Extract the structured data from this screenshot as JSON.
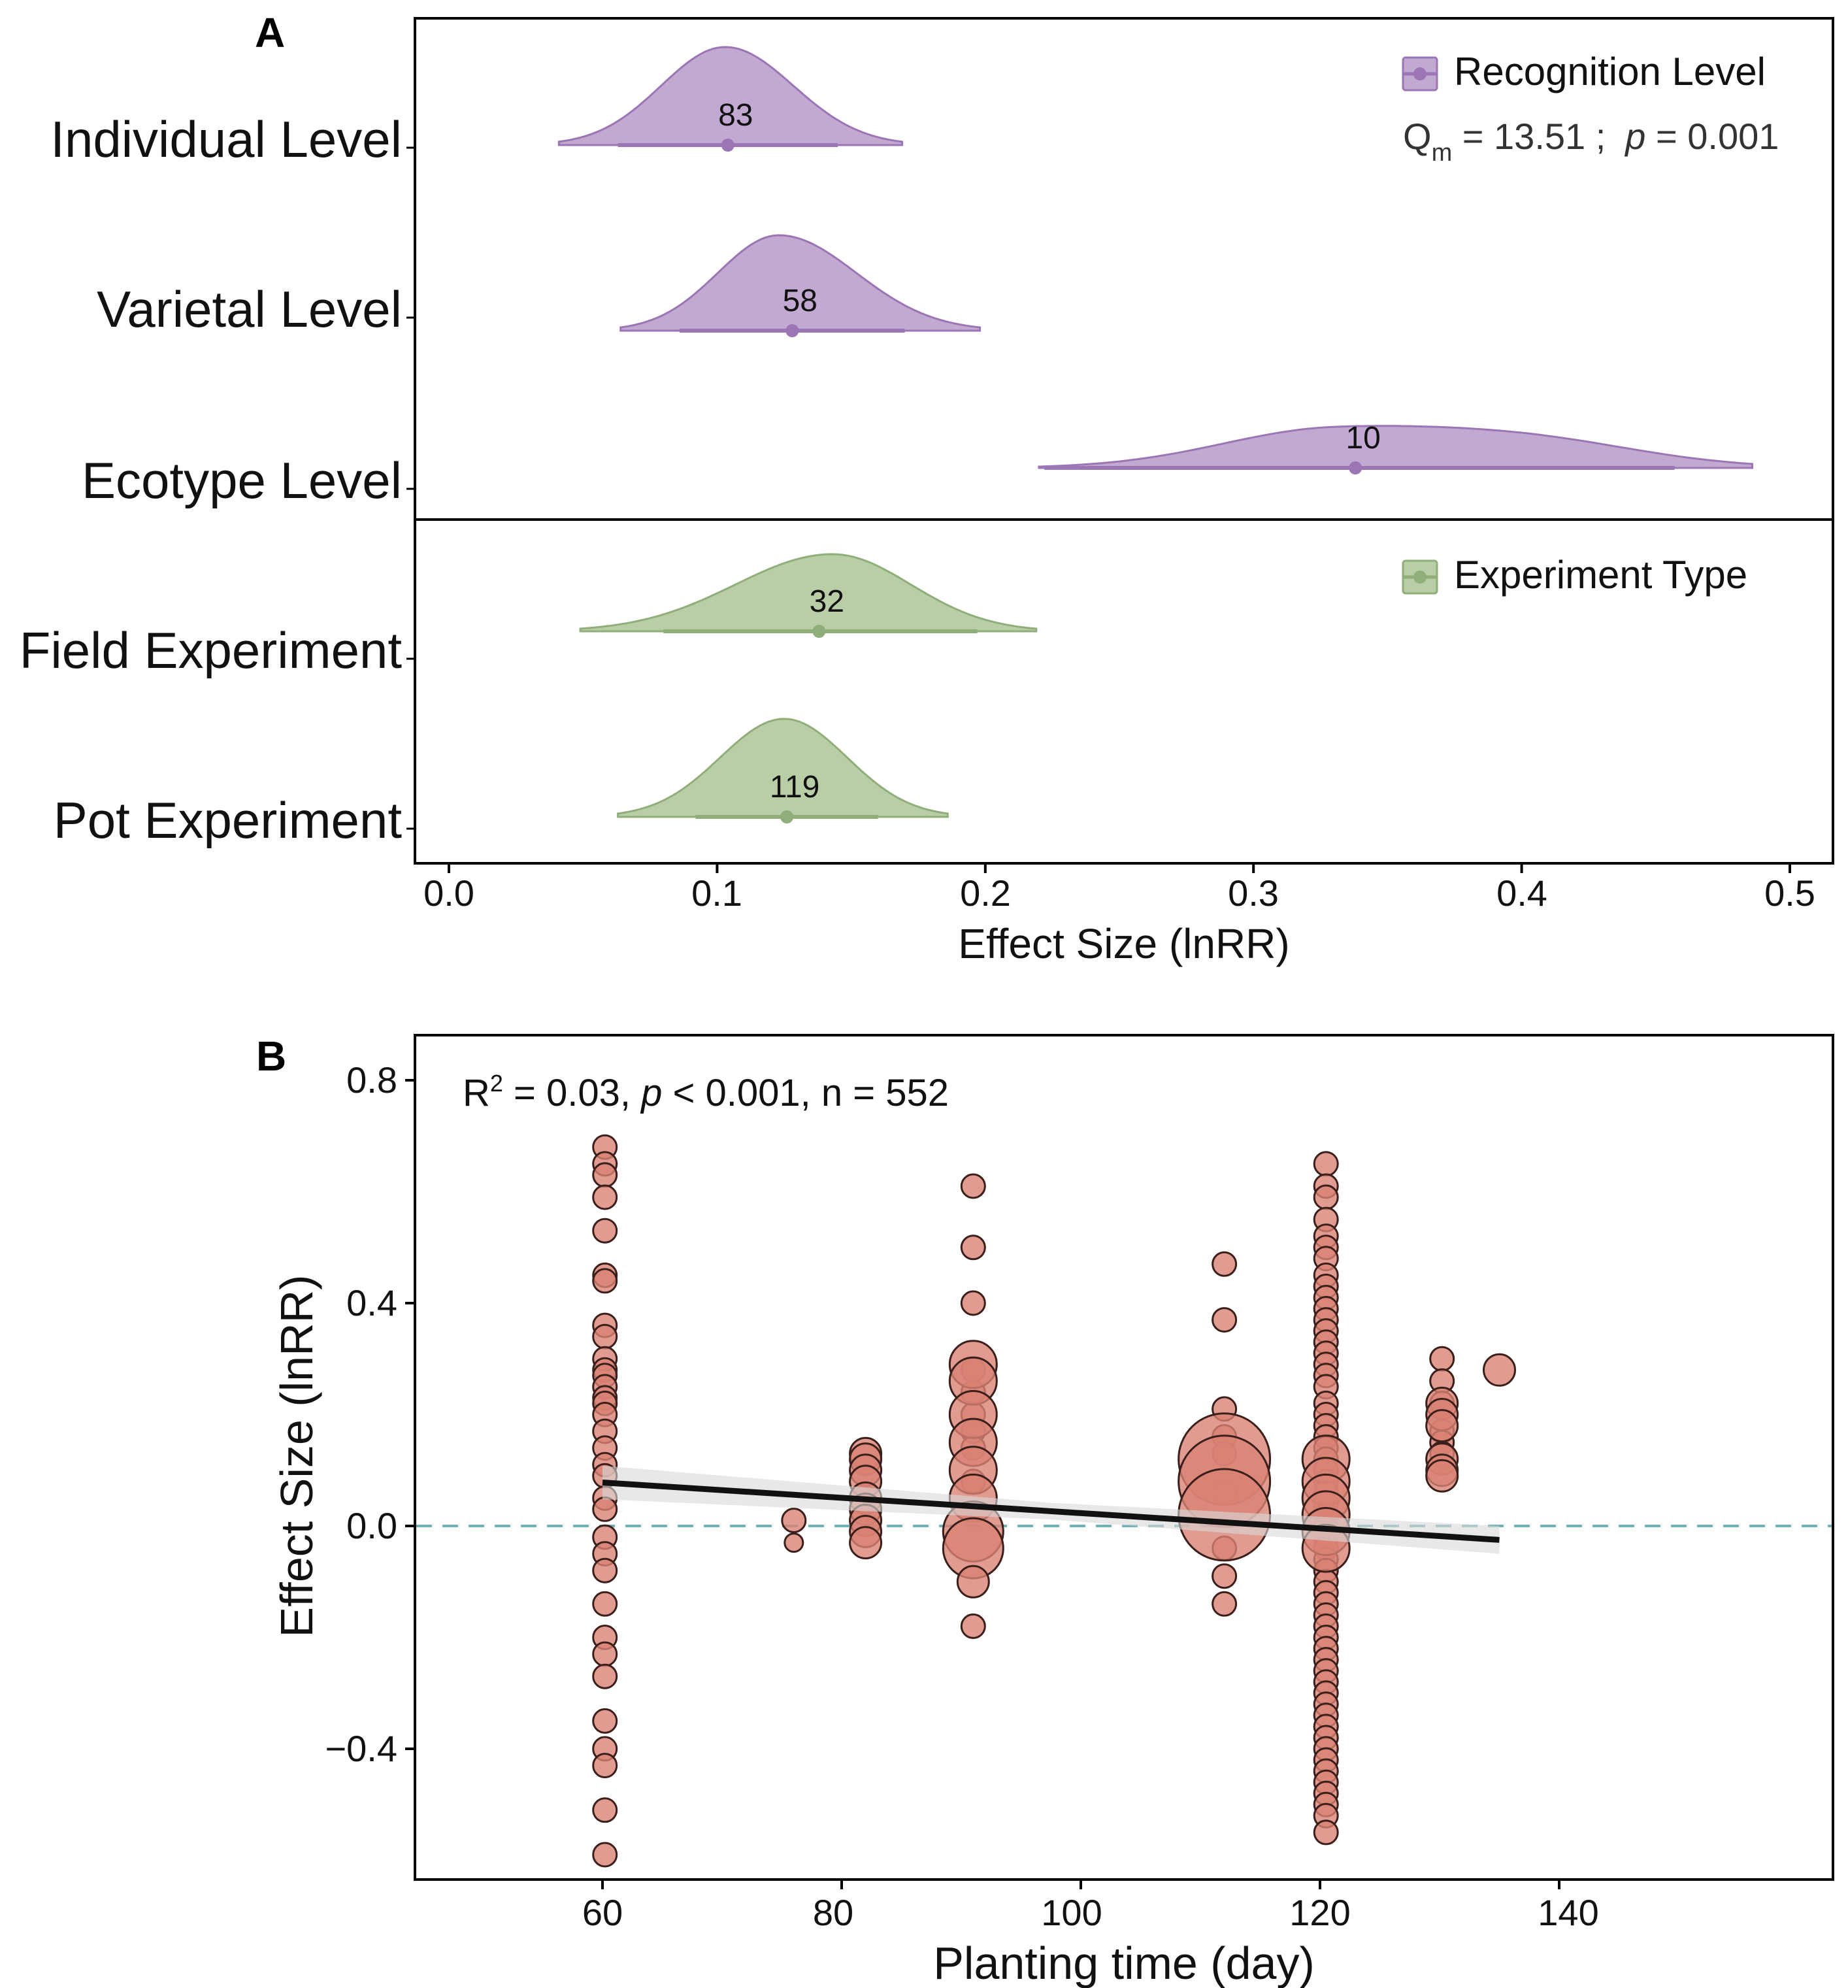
{
  "panels": {
    "a_letter": "A",
    "b_letter": "B"
  },
  "colors": {
    "purple_fill": "#c2a9d2",
    "purple_line": "#9b75b4",
    "green_fill": "#b9cda6",
    "green_line": "#8fae7a",
    "point_fill": "#d98274",
    "point_stroke": "#3a1f1a",
    "ref_line": "#6fb1b5",
    "fit_line": "#111111",
    "ci_band": "#d9d9d9"
  },
  "chart_data": [
    {
      "type": "ridgeline-forest",
      "title": "",
      "xlabel": "Effect Size (lnRR)",
      "xlim": [
        -0.01,
        0.52
      ],
      "xticks": [
        0.0,
        0.1,
        0.2,
        0.3,
        0.4,
        0.5
      ],
      "xtick_labels": [
        "0.0",
        "0.1",
        "0.2",
        "0.3",
        "0.4",
        "0.5"
      ],
      "groups": [
        {
          "legend": "Recognition Level",
          "color": "purple",
          "stat_q_prefix": "Q",
          "stat_q_sub": "m",
          "stat_q_value": " = 13.51 ;",
          "stat_p_label": "p",
          "stat_p_value": " = 0.001",
          "categories": [
            {
              "label": "Individual Level",
              "n": "83",
              "mean": 0.104,
              "ci_low": 0.063,
              "ci_high": 0.145,
              "range": [
                0.041,
                0.169
              ],
              "mode": 0.103
            },
            {
              "label": "Varietal Level",
              "n": "58",
              "mean": 0.128,
              "ci_low": 0.086,
              "ci_high": 0.17,
              "range": [
                0.064,
                0.198
              ],
              "mode": 0.123
            },
            {
              "label": "Ecotype Level",
              "n": "10",
              "mean": 0.338,
              "ci_low": 0.222,
              "ci_high": 0.457,
              "range": [
                0.22,
                0.486
              ],
              "mode": 0.33
            }
          ]
        },
        {
          "legend": "Experiment Type",
          "color": "green",
          "categories": [
            {
              "label": "Field Experiment",
              "n": "32",
              "mean": 0.138,
              "ci_low": 0.08,
              "ci_high": 0.197,
              "range": [
                0.049,
                0.219
              ],
              "mode": 0.143
            },
            {
              "label": "Pot Experiment",
              "n": "119",
              "mean": 0.126,
              "ci_low": 0.092,
              "ci_high": 0.16,
              "range": [
                0.063,
                0.186
              ],
              "mode": 0.125
            }
          ]
        }
      ]
    },
    {
      "type": "scatter",
      "xlabel": "Planting time (day)",
      "ylabel": "Effect Size (lnRR)",
      "xlim": [
        42,
        158
      ],
      "ylim": [
        -0.64,
        0.82
      ],
      "xticks": [
        60,
        80,
        100,
        120,
        140
      ],
      "xtick_labels": [
        "60",
        "80",
        "100",
        "120",
        "140"
      ],
      "yticks": [
        -0.4,
        0.0,
        0.4,
        0.8
      ],
      "ytick_labels": [
        "−0.4",
        "0.0",
        "0.4",
        "0.8"
      ],
      "stat_r": "R",
      "stat_r_sup": "2",
      "stat_r_value": " = 0.03, ",
      "stat_p_label": "p",
      "stat_rest": " < 0.001, n = 552",
      "fit": {
        "x": [
          60,
          135
        ],
        "y": [
          0.078,
          -0.025
        ]
      },
      "ci_band_halfwidth": [
        0.03,
        0.015,
        0.025
      ],
      "reference_y": 0.0,
      "groups": [
        {
          "x": 60.2,
          "size": "s",
          "y": [
            0.68,
            0.65,
            0.63,
            0.59,
            0.53,
            0.45,
            0.44,
            0.36,
            0.34,
            0.3,
            0.28,
            0.27,
            0.25,
            0.23,
            0.22,
            0.2,
            0.17,
            0.14,
            0.11,
            0.09,
            0.05,
            0.03,
            -0.02,
            -0.05,
            -0.08,
            -0.14,
            -0.2,
            -0.23,
            -0.27,
            -0.35,
            -0.4,
            -0.43,
            -0.51,
            -0.59
          ]
        },
        {
          "x": 76,
          "size": "s",
          "y": [
            0.01
          ]
        },
        {
          "x": 76,
          "size": "xs",
          "y": [
            -0.03
          ]
        },
        {
          "x": 82,
          "size": "m",
          "y": [
            0.13,
            0.12,
            0.1,
            0.08,
            0.05,
            0.03,
            0.01,
            -0.01,
            -0.03
          ]
        },
        {
          "x": 91,
          "size": "s",
          "y": [
            0.61,
            0.5,
            0.4,
            0.28,
            0.24,
            0.2,
            0.17,
            0.14,
            0.08,
            -0.18
          ]
        },
        {
          "x": 91,
          "size": "l",
          "y": [
            0.29,
            0.26,
            0.2,
            0.15,
            0.1,
            0.05
          ]
        },
        {
          "x": 91,
          "size": "xl",
          "y": [
            -0.01,
            -0.04
          ]
        },
        {
          "x": 91,
          "size": "m",
          "y": [
            -0.1
          ]
        },
        {
          "x": 112,
          "size": "s",
          "y": [
            0.47,
            0.37,
            0.21,
            0.16,
            0.13,
            0.06,
            -0.04,
            -0.09,
            -0.14
          ]
        },
        {
          "x": 112,
          "size": "xxl",
          "y": [
            0.12,
            0.08,
            0.02
          ]
        },
        {
          "x": 120.5,
          "size": "s",
          "y": [
            0.65,
            0.61,
            0.59,
            0.55,
            0.52,
            0.5,
            0.48,
            0.45,
            0.43,
            0.41,
            0.39,
            0.37,
            0.35,
            0.33,
            0.31,
            0.29,
            0.27,
            0.25,
            0.22,
            0.2,
            0.18,
            0.16,
            0.14,
            0.12,
            0.1,
            0.08,
            0.06,
            0.04,
            0.02,
            0.0,
            -0.02,
            -0.04,
            -0.06,
            -0.08,
            -0.1,
            -0.12,
            -0.14,
            -0.16,
            -0.18,
            -0.2,
            -0.22,
            -0.24,
            -0.26,
            -0.28,
            -0.3,
            -0.32,
            -0.34,
            -0.36,
            -0.38,
            -0.4,
            -0.42,
            -0.44,
            -0.46,
            -0.48,
            -0.5,
            -0.52,
            -0.55
          ]
        },
        {
          "x": 120.5,
          "size": "l",
          "y": [
            0.12,
            0.08,
            0.05,
            0.02,
            -0.01,
            -0.04
          ]
        },
        {
          "x": 130.2,
          "size": "s",
          "y": [
            0.3,
            0.26,
            0.22,
            0.17,
            0.15,
            0.13
          ]
        },
        {
          "x": 130.2,
          "size": "m",
          "y": [
            0.22,
            0.2,
            0.18,
            0.12,
            0.1,
            0.09
          ]
        },
        {
          "x": 135,
          "size": "m",
          "y": [
            0.28
          ]
        }
      ]
    }
  ]
}
